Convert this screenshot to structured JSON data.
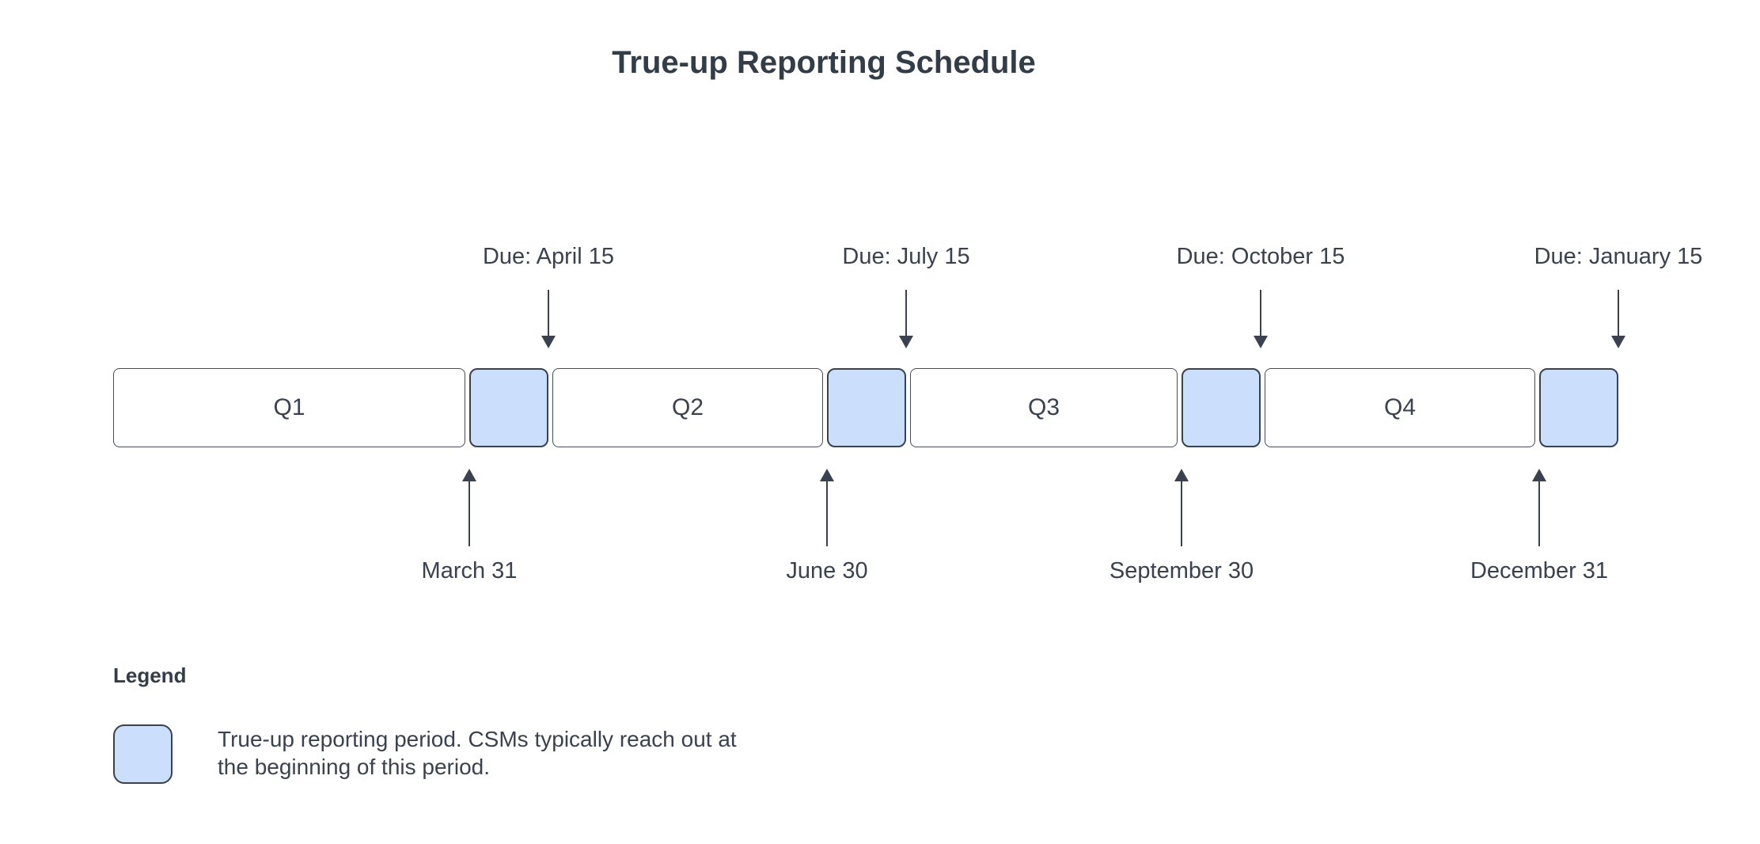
{
  "title": "True-up Reporting Schedule",
  "timeline": {
    "quarters": [
      "Q1",
      "Q2",
      "Q3",
      "Q4"
    ],
    "due_labels": [
      "Due: April 15",
      "Due: July 15",
      "Due: October 15",
      "Due: January 15"
    ],
    "quarter_end_labels": [
      "March 31",
      "June 30",
      "September 30",
      "December 31"
    ]
  },
  "legend": {
    "heading": "Legend",
    "description": "True-up reporting period. CSMs typically reach out at\nthe beginning of this period."
  },
  "colors": {
    "background": "#ffffff",
    "text": "#39424e",
    "trueup_fill": "#cbdefb",
    "trueup_border": "#39424e",
    "quarter_border": "#454d57"
  }
}
